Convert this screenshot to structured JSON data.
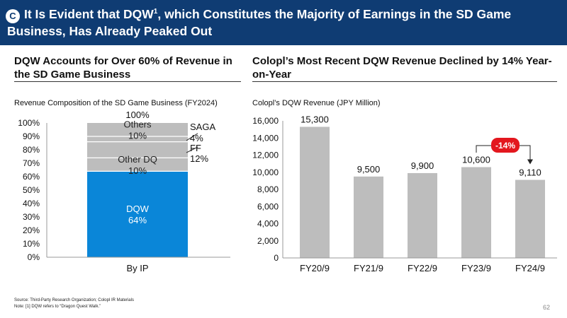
{
  "header": {
    "badge": "C",
    "title_before": "It Is Evident that DQW",
    "title_sup": "1",
    "title_after": ", which Constitutes the Majority of Earnings in the SD Game Business, Has Already Peaked Out"
  },
  "left_section": {
    "heading": "DQW Accounts for Over 60% of Revenue in the SD Game Business",
    "subtitle": "Revenue Composition of the SD Game Business (FY2024)"
  },
  "right_section": {
    "heading": "Colopl’s Most Recent DQW Revenue Declined by 14% Year-on-Year",
    "subtitle": "Colopl’s DQW Revenue (JPY Million)"
  },
  "footer": {
    "source": "Source: Third-Party Research Organization; Colopl IR Materials",
    "note": "Note: [1] DQW refers to “Dragon Quest Walk.”",
    "page": "62"
  },
  "colors": {
    "header": "#0f3c73",
    "dqw": "#0a86d8",
    "other": "#bdbdbd"
  },
  "chart_data": [
    {
      "type": "bar",
      "stacked": true,
      "categories": [
        "By IP"
      ],
      "ylim": [
        0,
        100
      ],
      "yticks": [
        "0%",
        "10%",
        "20%",
        "30%",
        "40%",
        "50%",
        "60%",
        "70%",
        "80%",
        "90%",
        "100%"
      ],
      "series": [
        {
          "name": "DQW",
          "values": [
            64
          ],
          "label": "64%",
          "color": "#0a86d8"
        },
        {
          "name": "Other DQ",
          "values": [
            10
          ],
          "label": "10%",
          "color": "#bdbdbd"
        },
        {
          "name": "FF",
          "values": [
            12
          ],
          "label": "12%",
          "color": "#bdbdbd"
        },
        {
          "name": "SAGA",
          "values": [
            4
          ],
          "label": "4%",
          "color": "#bdbdbd"
        },
        {
          "name": "Others",
          "values": [
            10
          ],
          "label": "10%",
          "color": "#bdbdbd"
        }
      ],
      "total_label": "100%"
    },
    {
      "type": "bar",
      "categories": [
        "FY20/9",
        "FY21/9",
        "FY22/9",
        "FY23/9",
        "FY24/9"
      ],
      "values": [
        15300,
        9500,
        9900,
        10600,
        9110
      ],
      "value_labels": [
        "15,300",
        "9,500",
        "9,900",
        "10,600",
        "9,110"
      ],
      "ylim": [
        0,
        16000
      ],
      "yticks": [
        "0",
        "2,000",
        "4,000",
        "6,000",
        "8,000",
        "10,000",
        "12,000",
        "14,000",
        "16,000"
      ],
      "annotation": {
        "text": "-14%",
        "from": "FY23/9",
        "to": "FY24/9"
      },
      "color": "#bdbdbd"
    }
  ]
}
